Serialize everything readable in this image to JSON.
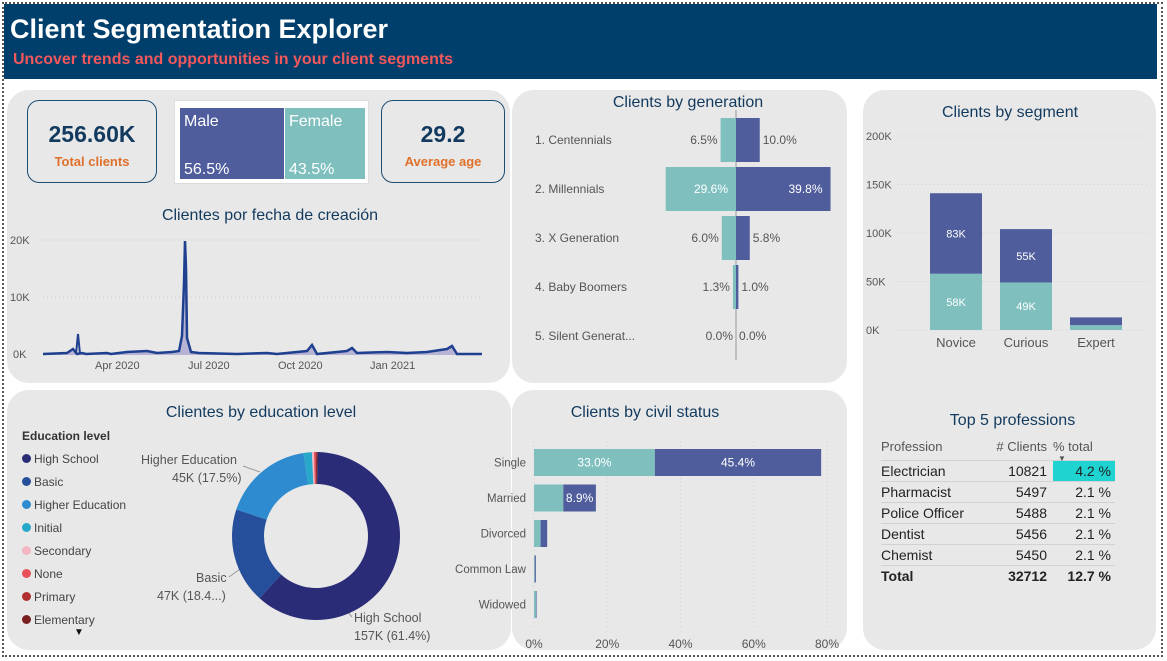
{
  "header": {
    "title": "Client Segmentation Explorer",
    "subtitle": "Uncover trends and opportunities in your client segments"
  },
  "kpis": {
    "total_clients": {
      "value": "256.60K",
      "label": "Total clients"
    },
    "average_age": {
      "value": "29.2",
      "label": "Average age"
    }
  },
  "gender": {
    "male": {
      "label": "Male",
      "value": "56.5%",
      "color": "#4f5d9c"
    },
    "female": {
      "label": "Female",
      "value": "43.5%",
      "color": "#7fc0bf"
    }
  },
  "creation_chart": {
    "title": "Clientes por fecha de creación",
    "y_ticks": [
      "20K",
      "10K",
      "0K"
    ],
    "x_ticks": [
      "Apr 2020",
      "Jul 2020",
      "Oct 2020",
      "Jan 2021"
    ]
  },
  "generation_chart": {
    "title": "Clients by generation",
    "categories": [
      "1. Centennials",
      "2. Millennials",
      "3. X Generation",
      "4. Baby Boomers",
      "5. Silent Generat..."
    ],
    "female": [
      6.5,
      29.6,
      6.0,
      1.3,
      0.0
    ],
    "male": [
      10.0,
      39.8,
      5.8,
      1.0,
      0.0
    ],
    "female_labels": [
      "6.5%",
      "29.6%",
      "6.0%",
      "1.3%",
      "0.0%"
    ],
    "male_labels": [
      "10.0%",
      "39.8%",
      "5.8%",
      "1.0%",
      "0.0%"
    ]
  },
  "segment_chart": {
    "title": "Clients by segment",
    "y_ticks": [
      "200K",
      "150K",
      "100K",
      "50K",
      "0K"
    ],
    "categories": [
      "Novice",
      "Curious",
      "Expert"
    ],
    "female": [
      58,
      49,
      5
    ],
    "male": [
      83,
      55,
      8
    ],
    "female_labels": [
      "58K",
      "49K",
      ""
    ],
    "male_labels": [
      "83K",
      "55K",
      ""
    ]
  },
  "education_chart": {
    "title": "Clientes by education level",
    "legend_title": "Education level",
    "legend": [
      {
        "label": "High School",
        "color": "#2a2c78"
      },
      {
        "label": "Basic",
        "color": "#264f9b"
      },
      {
        "label": "Higher Education",
        "color": "#2f8bcf"
      },
      {
        "label": "Initial",
        "color": "#28a8c8"
      },
      {
        "label": "Secondary",
        "color": "#f4b6c2"
      },
      {
        "label": "None",
        "color": "#e8505b"
      },
      {
        "label": "Primary",
        "color": "#b03030"
      },
      {
        "label": "Elementary",
        "color": "#7a1f1f"
      }
    ],
    "slices": [
      61.4,
      18.4,
      17.5,
      1.6,
      0.4,
      0.3,
      0.2,
      0.2
    ],
    "labels": {
      "higher_name": "Higher Education",
      "higher_value": "45K (17.5%)",
      "basic_name": "Basic",
      "basic_value": "47K (18.4...)",
      "hs_name": "High School",
      "hs_value": "157K (61.4%)"
    }
  },
  "civil_chart": {
    "title": "Clients by civil status",
    "categories": [
      "Single",
      "Married",
      "Divorced",
      "Common Law",
      "Widowed"
    ],
    "female": [
      33.0,
      8.0,
      1.8,
      0.2,
      0.5
    ],
    "male": [
      45.4,
      8.9,
      1.8,
      0.3,
      0.2
    ],
    "female_labels": [
      "33.0%",
      "",
      "",
      "",
      ""
    ],
    "male_labels": [
      "45.4%",
      "8.9%",
      "",
      "",
      ""
    ],
    "x_ticks": [
      "0%",
      "20%",
      "40%",
      "60%",
      "80%"
    ]
  },
  "professions": {
    "title": "Top 5 professions",
    "columns": [
      "Profession",
      "# Clients",
      "% total"
    ],
    "rows": [
      {
        "name": "Electrician",
        "clients": "10821",
        "pct": "4.2 %"
      },
      {
        "name": "Pharmacist",
        "clients": "5497",
        "pct": "2.1 %"
      },
      {
        "name": "Police Officer",
        "clients": "5488",
        "pct": "2.1 %"
      },
      {
        "name": "Dentist",
        "clients": "5456",
        "pct": "2.1 %"
      },
      {
        "name": "Chemist",
        "clients": "5450",
        "pct": "2.1 %"
      }
    ],
    "total": {
      "name": "Total",
      "clients": "32712",
      "pct": "12.7 %"
    },
    "highlight_color": "#1fd3d1"
  },
  "colors": {
    "male": "#4f5d9c",
    "female": "#7fc0bf",
    "line": "#1f3f8f"
  }
}
